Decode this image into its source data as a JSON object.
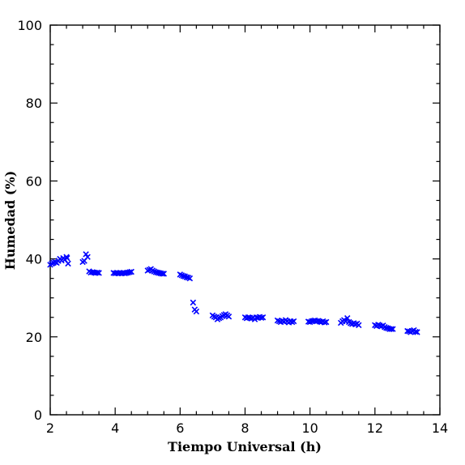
{
  "chart_data": {
    "type": "scatter",
    "xlabel": "Tiempo Universal (h)",
    "ylabel": "Humedad (%)",
    "xlim": [
      2,
      14
    ],
    "ylim": [
      0,
      100
    ],
    "xticks": [
      2,
      4,
      6,
      8,
      10,
      12,
      14
    ],
    "yticks": [
      0,
      20,
      40,
      60,
      80,
      100
    ],
    "x_minor_step": 0.5,
    "y_minor_step": 5,
    "grid": false,
    "marker": "x",
    "marker_color": "#0000ff",
    "points": [
      [
        2.0,
        38.5
      ],
      [
        2.05,
        38.8
      ],
      [
        2.1,
        39.0
      ],
      [
        2.15,
        39.2
      ],
      [
        2.2,
        39.0
      ],
      [
        2.25,
        39.5
      ],
      [
        2.3,
        40.0
      ],
      [
        2.35,
        39.6
      ],
      [
        2.4,
        40.2
      ],
      [
        2.45,
        39.8
      ],
      [
        2.5,
        40.5
      ],
      [
        2.52,
        40.2
      ],
      [
        2.55,
        38.8
      ],
      [
        3.0,
        39.2
      ],
      [
        3.05,
        39.5
      ],
      [
        3.1,
        41.2
      ],
      [
        3.15,
        40.5
      ],
      [
        3.2,
        36.8
      ],
      [
        3.25,
        36.5
      ],
      [
        3.3,
        36.6
      ],
      [
        3.35,
        36.5
      ],
      [
        3.4,
        36.4
      ],
      [
        3.45,
        36.5
      ],
      [
        3.5,
        36.4
      ],
      [
        3.95,
        36.4
      ],
      [
        4.0,
        36.3
      ],
      [
        4.05,
        36.4
      ],
      [
        4.1,
        36.3
      ],
      [
        4.15,
        36.4
      ],
      [
        4.2,
        36.3
      ],
      [
        4.25,
        36.4
      ],
      [
        4.3,
        36.3
      ],
      [
        4.35,
        36.4
      ],
      [
        4.4,
        36.5
      ],
      [
        4.45,
        36.6
      ],
      [
        4.5,
        36.7
      ],
      [
        5.0,
        37.0
      ],
      [
        5.05,
        37.2
      ],
      [
        5.1,
        37.4
      ],
      [
        5.15,
        37.0
      ],
      [
        5.2,
        36.8
      ],
      [
        5.25,
        36.6
      ],
      [
        5.3,
        36.5
      ],
      [
        5.35,
        36.4
      ],
      [
        5.4,
        36.3
      ],
      [
        5.45,
        36.2
      ],
      [
        5.5,
        36.2
      ],
      [
        6.0,
        36.0
      ],
      [
        6.05,
        35.8
      ],
      [
        6.1,
        35.6
      ],
      [
        6.15,
        35.5
      ],
      [
        6.2,
        35.3
      ],
      [
        6.25,
        35.2
      ],
      [
        6.3,
        35.0
      ],
      [
        6.4,
        28.8
      ],
      [
        6.45,
        27.0
      ],
      [
        6.5,
        26.5
      ],
      [
        7.0,
        25.5
      ],
      [
        7.05,
        25.2
      ],
      [
        7.1,
        25.0
      ],
      [
        7.15,
        24.5
      ],
      [
        7.2,
        24.8
      ],
      [
        7.25,
        25.0
      ],
      [
        7.3,
        25.3
      ],
      [
        7.35,
        25.6
      ],
      [
        7.4,
        25.8
      ],
      [
        7.45,
        25.5
      ],
      [
        7.5,
        25.2
      ],
      [
        8.0,
        25.0
      ],
      [
        8.05,
        24.8
      ],
      [
        8.1,
        25.0
      ],
      [
        8.15,
        24.9
      ],
      [
        8.2,
        24.7
      ],
      [
        8.25,
        24.9
      ],
      [
        8.3,
        24.5
      ],
      [
        8.35,
        25.0
      ],
      [
        8.4,
        24.9
      ],
      [
        8.45,
        25.1
      ],
      [
        8.5,
        24.9
      ],
      [
        8.55,
        25.0
      ],
      [
        9.0,
        24.2
      ],
      [
        9.05,
        24.0
      ],
      [
        9.1,
        23.8
      ],
      [
        9.15,
        24.1
      ],
      [
        9.2,
        23.9
      ],
      [
        9.25,
        24.3
      ],
      [
        9.3,
        24.0
      ],
      [
        9.35,
        23.7
      ],
      [
        9.4,
        24.0
      ],
      [
        9.45,
        23.8
      ],
      [
        9.5,
        24.0
      ],
      [
        9.95,
        23.9
      ],
      [
        10.0,
        23.8
      ],
      [
        10.05,
        24.0
      ],
      [
        10.1,
        24.1
      ],
      [
        10.15,
        24.2
      ],
      [
        10.2,
        24.0
      ],
      [
        10.25,
        24.1
      ],
      [
        10.3,
        23.9
      ],
      [
        10.35,
        23.8
      ],
      [
        10.4,
        24.0
      ],
      [
        10.45,
        23.7
      ],
      [
        10.5,
        23.8
      ],
      [
        10.95,
        23.6
      ],
      [
        11.0,
        24.0
      ],
      [
        11.05,
        24.3
      ],
      [
        11.1,
        24.0
      ],
      [
        11.15,
        24.8
      ],
      [
        11.2,
        23.8
      ],
      [
        11.25,
        23.5
      ],
      [
        11.3,
        23.3
      ],
      [
        11.35,
        23.5
      ],
      [
        11.4,
        23.2
      ],
      [
        11.45,
        23.4
      ],
      [
        11.5,
        23.0
      ],
      [
        12.0,
        23.0
      ],
      [
        12.05,
        22.8
      ],
      [
        12.1,
        23.1
      ],
      [
        12.15,
        22.9
      ],
      [
        12.2,
        22.7
      ],
      [
        12.25,
        22.9
      ],
      [
        12.3,
        22.5
      ],
      [
        12.35,
        22.3
      ],
      [
        12.4,
        22.2
      ],
      [
        12.45,
        22.0
      ],
      [
        12.5,
        22.0
      ],
      [
        12.55,
        22.0
      ],
      [
        13.0,
        21.5
      ],
      [
        13.05,
        21.4
      ],
      [
        13.1,
        21.2
      ],
      [
        13.15,
        21.5
      ],
      [
        13.2,
        21.7
      ],
      [
        13.25,
        21.3
      ],
      [
        13.3,
        21.2
      ]
    ]
  }
}
